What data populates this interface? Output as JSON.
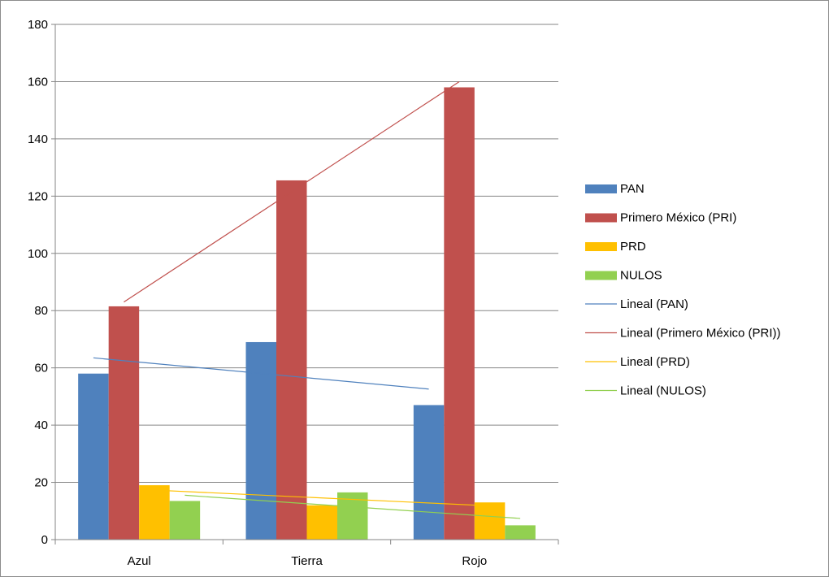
{
  "chart_data": {
    "type": "bar",
    "title": "",
    "xlabel": "",
    "ylabel": "",
    "categories": [
      "Azul",
      "Tierra",
      "Rojo"
    ],
    "ylim": [
      0,
      180
    ],
    "yticks": [
      0,
      20,
      40,
      60,
      80,
      100,
      120,
      140,
      160,
      180
    ],
    "grid": true,
    "legend_position": "right",
    "series": [
      {
        "name": "PAN",
        "values": [
          58,
          69,
          47
        ],
        "color": "#4f81bd"
      },
      {
        "name": "Primero México (PRI)",
        "values": [
          81.5,
          125.5,
          158
        ],
        "color": "#c0504d"
      },
      {
        "name": "PRD",
        "values": [
          19,
          12,
          13
        ],
        "color": "#ffc000"
      },
      {
        "name": "NULOS",
        "values": [
          13.5,
          16.5,
          5
        ],
        "color": "#92d050"
      }
    ],
    "trendlines": [
      {
        "name": "Lineal (PAN)",
        "series": "PAN",
        "type": "linear",
        "start": 63.5,
        "end": 52.6,
        "color": "#4f81bd"
      },
      {
        "name": "Lineal (Primero México (PRI))",
        "series": "Primero México (PRI)",
        "type": "linear",
        "start": 83,
        "end": 160,
        "color": "#c0504d"
      },
      {
        "name": "Lineal (PRD)",
        "series": "PRD",
        "type": "linear",
        "start": 17.3,
        "end": 11.8,
        "color": "#ffc000"
      },
      {
        "name": "Lineal (NULOS)",
        "series": "NULOS",
        "type": "linear",
        "start": 15.5,
        "end": 7.4,
        "color": "#92d050"
      }
    ]
  }
}
